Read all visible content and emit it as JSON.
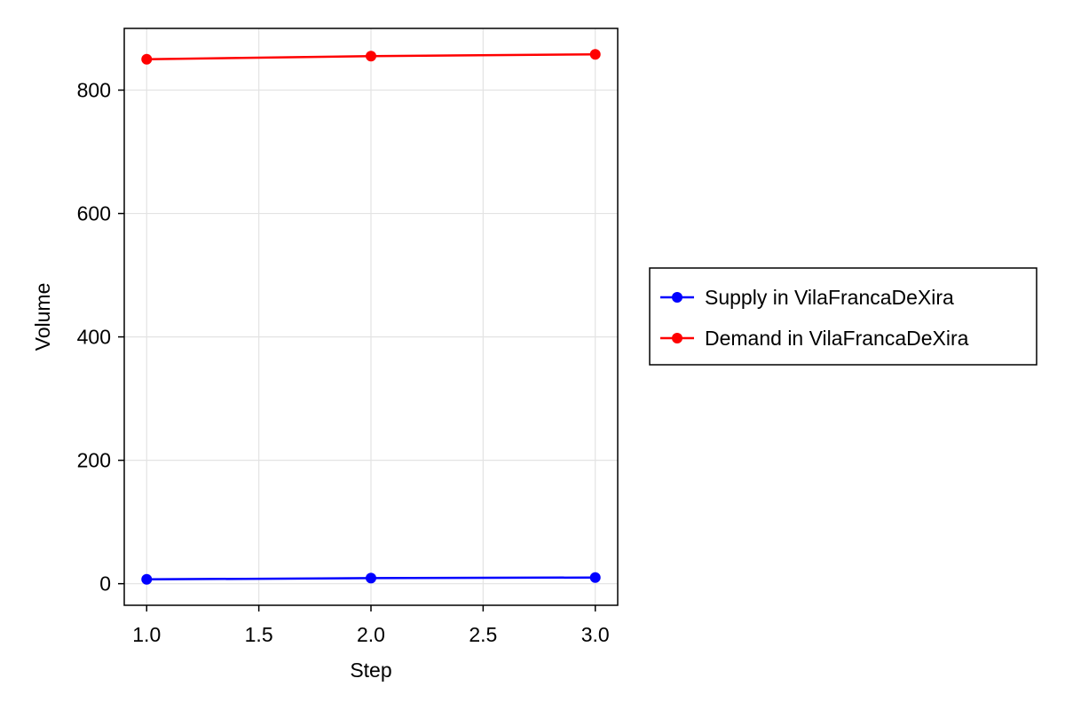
{
  "chart_data": {
    "type": "line",
    "title": "",
    "xlabel": "Step",
    "ylabel": "Volume",
    "xlim": [
      0.9,
      3.1
    ],
    "ylim": [
      -35,
      900
    ],
    "xticks": [
      1.0,
      1.5,
      2.0,
      2.5,
      3.0
    ],
    "xtick_labels": [
      "1.0",
      "1.5",
      "2.0",
      "2.5",
      "3.0"
    ],
    "yticks": [
      0,
      200,
      400,
      600,
      800
    ],
    "ytick_labels": [
      "0",
      "200",
      "400",
      "600",
      "800"
    ],
    "grid": true,
    "legend_position": "right",
    "x": [
      1,
      2,
      3
    ],
    "series": [
      {
        "name": "Supply in VilaFrancaDeXira",
        "color": "#0000ff",
        "values": [
          7,
          9,
          10
        ]
      },
      {
        "name": "Demand in VilaFrancaDeXira",
        "color": "#ff0000",
        "values": [
          850,
          855,
          858
        ]
      }
    ]
  }
}
